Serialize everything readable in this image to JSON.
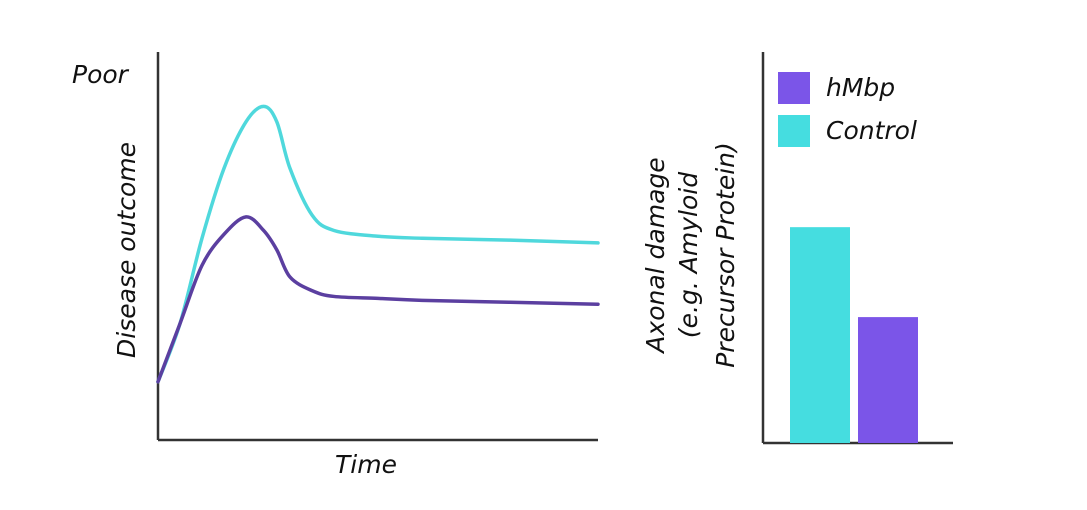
{
  "chart_data": [
    {
      "type": "line",
      "annotation": "Poor",
      "ylabel": "Disease outcome",
      "xlabel": "Time",
      "x": [
        0,
        5,
        10,
        15,
        20,
        24,
        27,
        30,
        35,
        40,
        50,
        60,
        80,
        100
      ],
      "xlim": [
        0,
        100
      ],
      "ylim": [
        0,
        100
      ],
      "series": [
        {
          "color": "#4fd8dc",
          "values": [
            15,
            30,
            52,
            70,
            82,
            86,
            82,
            70,
            58,
            54,
            52.5,
            52,
            51.5,
            50.8
          ]
        },
        {
          "color": "#5b3fa0",
          "values": [
            15,
            30,
            45,
            53,
            57.5,
            54,
            49,
            42,
            38.5,
            37,
            36.5,
            36,
            35.5,
            35
          ]
        }
      ]
    },
    {
      "type": "bar",
      "ylabel": [
        "Axonal damage",
        "(e.g. Amyloid",
        "Precursor Protein)"
      ],
      "categories": [
        null
      ],
      "ylim": [
        0,
        100
      ],
      "legend": "top-left",
      "series": [
        {
          "name": "hMbp",
          "color": "#7b55e8",
          "values": [
            32.2
          ]
        },
        {
          "name": "Control",
          "color": "#45dde0",
          "values": [
            55.2
          ]
        }
      ]
    }
  ]
}
